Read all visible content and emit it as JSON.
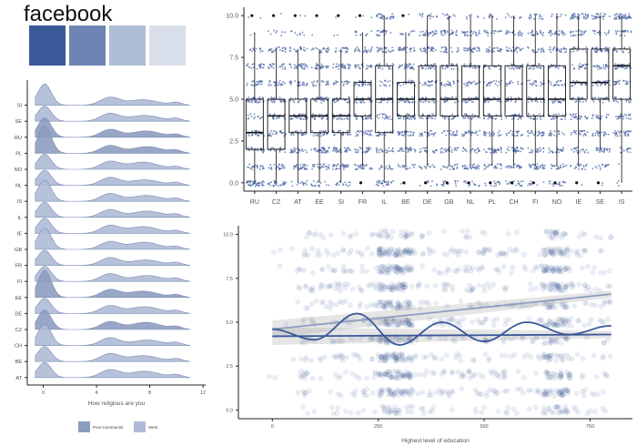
{
  "title": "facebook",
  "palette": [
    "#3b5998",
    "#6d84b4",
    "#afbdd4",
    "#d8dfea"
  ],
  "chart_data": [
    {
      "type": "ridgeline",
      "xlabel": "How religious are you",
      "xticks": [
        0,
        4,
        8,
        12
      ],
      "xlim": [
        -1.2,
        12.2
      ],
      "countries": [
        "SI",
        "SE",
        "RU",
        "PL",
        "NO",
        "NL",
        "IS",
        "IL",
        "IE",
        "GB",
        "FR",
        "FI",
        "EE",
        "DE",
        "CZ",
        "CH",
        "BE",
        "AT"
      ],
      "groups": {
        "SI": "West",
        "SE": "West",
        "RU": "Post-Communist",
        "PL": "Post-Communist",
        "NO": "West",
        "NL": "West",
        "IS": "West",
        "IL": "West",
        "IE": "West",
        "GB": "West",
        "FR": "West",
        "FI": "West",
        "EE": "Post-Communist",
        "DE": "West",
        "CZ": "Post-Communist",
        "CH": "West",
        "BE": "West",
        "AT": "West"
      },
      "legend": {
        "position": "bottom",
        "entries": [
          {
            "name": "Post-Communist",
            "color": "#8d9dc0"
          },
          {
            "name": "West",
            "color": "#aebbd6"
          }
        ]
      }
    },
    {
      "type": "box",
      "categories": [
        "RU",
        "CZ",
        "AT",
        "EE",
        "SI",
        "FR",
        "IL",
        "BE",
        "DE",
        "GB",
        "NL",
        "PL",
        "CH",
        "FI",
        "NO",
        "IE",
        "SE",
        "IS"
      ],
      "ylim": [
        -0.5,
        10.5
      ],
      "yticks": [
        "0.0",
        "2.5",
        "5.0",
        "7.5",
        "10.0"
      ],
      "boxes": [
        {
          "q1": 2,
          "median": 3,
          "q3": 5,
          "low": 0,
          "high": 9
        },
        {
          "q1": 2,
          "median": 4,
          "q3": 5,
          "low": 0,
          "high": 8
        },
        {
          "q1": 3,
          "median": 4,
          "q3": 5,
          "low": 0,
          "high": 8
        },
        {
          "q1": 3,
          "median": 4,
          "q3": 5,
          "low": 0,
          "high": 8
        },
        {
          "q1": 3,
          "median": 4,
          "q3": 5,
          "low": 0,
          "high": 8
        },
        {
          "q1": 4,
          "median": 5,
          "q3": 6,
          "low": 1,
          "high": 9
        },
        {
          "q1": 3,
          "median": 5,
          "q3": 7,
          "low": 0,
          "high": 10
        },
        {
          "q1": 4,
          "median": 5,
          "q3": 6,
          "low": 1,
          "high": 9
        },
        {
          "q1": 4,
          "median": 5,
          "q3": 7,
          "low": 1,
          "high": 10
        },
        {
          "q1": 4,
          "median": 5,
          "q3": 7,
          "low": 1,
          "high": 10
        },
        {
          "q1": 4,
          "median": 5,
          "q3": 7,
          "low": 1,
          "high": 10
        },
        {
          "q1": 4,
          "median": 5,
          "q3": 7,
          "low": 1,
          "high": 10
        },
        {
          "q1": 4,
          "median": 5,
          "q3": 7,
          "low": 1,
          "high": 10
        },
        {
          "q1": 4,
          "median": 5,
          "q3": 7,
          "low": 1,
          "high": 10
        },
        {
          "q1": 4,
          "median": 5,
          "q3": 7,
          "low": 1,
          "high": 10
        },
        {
          "q1": 5,
          "median": 6,
          "q3": 8,
          "low": 1,
          "high": 10
        },
        {
          "q1": 5,
          "median": 6,
          "q3": 8,
          "low": 2,
          "high": 10
        },
        {
          "q1": 5,
          "median": 7,
          "q3": 8,
          "low": 0,
          "high": 10
        }
      ]
    },
    {
      "type": "scatter",
      "xlabel": "Highest level of education",
      "xlim": [
        -80,
        850
      ],
      "ylim": [
        -0.5,
        10.5
      ],
      "xticks": [
        "0",
        "250",
        "500",
        "750"
      ],
      "yticks": [
        "0.0",
        "2.5",
        "5.0",
        "7.5",
        "10.0"
      ],
      "fits": [
        {
          "name": "linear",
          "x": [
            0,
            800
          ],
          "y": [
            4.6,
            6.6
          ]
        },
        {
          "name": "flat",
          "x": [
            0,
            800
          ],
          "y": [
            4.2,
            4.3
          ]
        },
        {
          "name": "smooth",
          "x": [
            0,
            100,
            200,
            300,
            400,
            500,
            600,
            700,
            800
          ],
          "y": [
            4.6,
            4.0,
            5.5,
            3.7,
            5.0,
            3.9,
            5.0,
            4.3,
            4.8
          ]
        }
      ]
    }
  ]
}
